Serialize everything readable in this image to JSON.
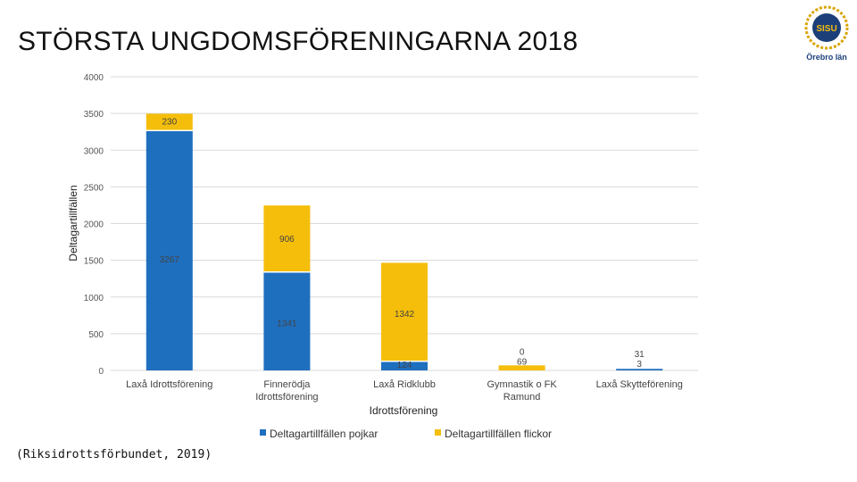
{
  "slide": {
    "title": "STÖRSTA UNGDOMSFÖRENINGARNA 2018",
    "source": "(Riksidrottsförbundet, 2019)"
  },
  "logo": {
    "text": "Örebro län",
    "badge_text": "SISU"
  },
  "colors": {
    "boys": "#1F6FBF",
    "girls": "#F5BE0B",
    "grid": "#D9D9D9"
  },
  "chart_data": {
    "type": "bar",
    "stacked": true,
    "xlabel": "Idrottsförening",
    "ylabel": "Deltagartillfällen",
    "ylim": [
      0,
      4000
    ],
    "yticks": [
      0,
      500,
      1000,
      1500,
      2000,
      2500,
      3000,
      3500,
      4000
    ],
    "categories": [
      [
        "Laxå Idrottsförening"
      ],
      [
        "Finnerödja",
        "Idrottsförening"
      ],
      [
        "Laxå Ridklubb"
      ],
      [
        "Gymnastik o FK",
        "Ramund"
      ],
      [
        "Laxå Skytteförening"
      ]
    ],
    "series": [
      {
        "name": "Deltagartillfällen pojkar",
        "values": [
          3267,
          1341,
          124,
          0,
          31
        ]
      },
      {
        "name": "Deltagartillfällen flickor",
        "values": [
          230,
          906,
          1342,
          69,
          3
        ]
      }
    ],
    "legend": "bottom"
  }
}
